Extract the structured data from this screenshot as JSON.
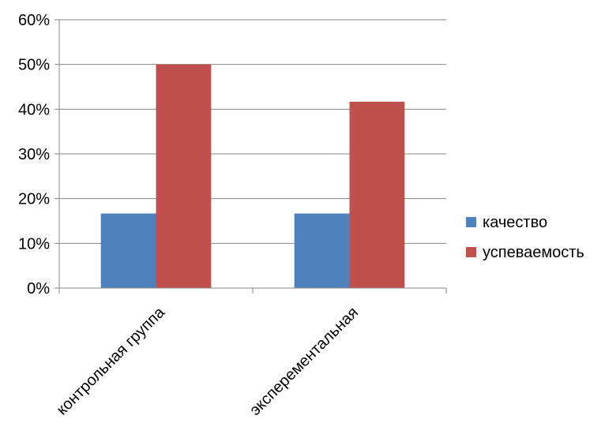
{
  "chart_data": {
    "type": "bar",
    "categories": [
      "контрольная группа",
      "эксперементальная"
    ],
    "series": [
      {
        "name": "качество",
        "values": [
          0.1667,
          0.1667
        ],
        "color": "#4F81BD"
      },
      {
        "name": "успеваемость",
        "values": [
          0.5,
          0.4167
        ],
        "color": "#C0504D"
      }
    ],
    "ylim": [
      0,
      0.6
    ],
    "yticks": [
      "0%",
      "10%",
      "20%",
      "30%",
      "40%",
      "50%",
      "60%"
    ],
    "grid": true,
    "legend": "right"
  }
}
